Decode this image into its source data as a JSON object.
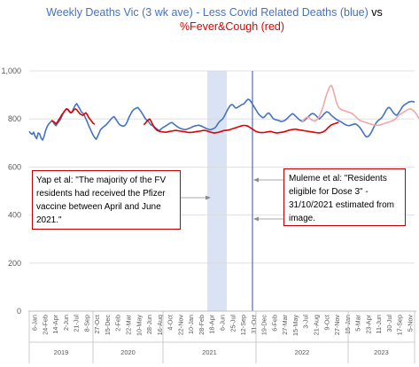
{
  "chart_data": {
    "type": "line",
    "title_line1": "Weekly Deaths Vic (3 wk ave)  - Less Covid Related Deaths (blue)",
    "title_vs": " vs",
    "title_line2": "%Fever&Cough (red)",
    "yticks": [
      "0",
      "200",
      "400",
      "600",
      "800",
      "1,000"
    ],
    "ylim": [
      0,
      1000
    ],
    "xlabels": [
      "6-Jan",
      "24-Feb",
      "14-Apr",
      "2-Jun",
      "21-Jul",
      "8-Sep",
      "27-Oct",
      "15-Dec",
      "2-Feb",
      "22-Mar",
      "10-May",
      "28-Jun",
      "16-Aug",
      "4-Oct",
      "22-Nov",
      "10-Jan",
      "28-Feb",
      "18-Apr",
      "6-Jun",
      "25-Jul",
      "12-Sep",
      "31-Oct",
      "19-Dec",
      "6-Feb",
      "27-Mar",
      "15-May",
      "3-Jul",
      "21-Aug",
      "9-Oct",
      "27-Nov",
      "15-Jan",
      "5-Mar",
      "23-Apr",
      "11-Jun",
      "30-Jul",
      "17-Sep",
      "5-Nov"
    ],
    "years": [
      "2019",
      "2020",
      "2021",
      "2022",
      "2023"
    ],
    "series": [
      {
        "color": "#4472c4",
        "values": [
          748,
          740,
          736,
          745,
          728,
          718,
          742,
          738,
          720,
          712,
          728,
          752,
          768,
          778,
          785,
          792,
          788,
          778,
          772,
          782,
          790,
          798,
          812,
          826,
          835,
          842,
          838,
          830,
          825,
          832,
          846,
          858,
          864,
          852,
          842,
          830,
          825,
          815,
          802,
          788,
          772,
          758,
          745,
          732,
          722,
          715,
          728,
          742,
          756,
          762,
          768,
          772,
          778,
          785,
          792,
          800,
          806,
          810,
          802,
          792,
          782,
          775,
          772,
          770,
          772,
          778,
          790,
          806,
          818,
          830,
          838,
          842,
          845,
          848,
          840,
          832,
          822,
          812,
          802,
          795,
          790,
          782,
          775,
          772,
          768,
          762,
          758,
          752,
          755,
          760,
          765,
          768,
          772,
          776,
          780,
          784,
          785,
          780,
          775,
          770,
          766,
          762,
          760,
          758,
          756,
          755,
          758,
          760,
          762,
          765,
          768,
          770,
          772,
          773,
          774,
          772,
          770,
          766,
          764,
          760,
          758,
          756,
          755,
          758,
          760,
          764,
          772,
          782,
          790,
          795,
          800,
          810,
          822,
          835,
          846,
          855,
          860,
          858,
          850,
          845,
          848,
          852,
          856,
          860,
          862,
          868,
          876,
          882,
          880,
          872,
          862,
          852,
          842,
          832,
          822,
          815,
          810,
          805,
          808,
          815,
          822,
          825,
          818,
          810,
          802,
          798,
          796,
          795,
          793,
          790,
          790,
          792,
          795,
          800,
          806,
          812,
          818,
          822,
          818,
          812,
          806,
          800,
          795,
          792,
          790,
          794,
          800,
          806,
          812,
          818,
          822,
          822,
          818,
          812,
          806,
          800,
          806,
          812,
          820,
          826,
          830,
          828,
          822,
          816,
          810,
          805,
          800,
          796,
          793,
          790,
          786,
          782,
          778,
          775,
          773,
          772,
          774,
          776,
          778,
          780,
          777,
          772,
          766,
          758,
          748,
          738,
          728,
          725,
          728,
          735,
          745,
          758,
          770,
          782,
          790,
          796,
          800,
          806,
          815,
          826,
          838,
          846,
          848,
          842,
          832,
          824,
          818,
          815,
          822,
          832,
          842,
          852,
          858,
          862,
          866,
          870,
          872,
          873,
          872,
          870
        ]
      },
      {
        "color": "#e00000",
        "values": [
          null,
          null,
          null,
          null,
          null,
          null,
          null,
          null,
          null,
          null,
          null,
          null,
          null,
          null,
          null,
          795,
          790,
          785,
          780,
          788,
          798,
          808,
          818,
          826,
          835,
          842,
          840,
          832,
          826,
          830,
          838,
          842,
          838,
          830,
          822,
          818,
          815,
          820,
          826,
          818,
          806,
          798,
          790,
          782,
          778,
          null,
          null,
          null,
          null,
          null,
          null,
          null,
          null,
          null,
          null,
          null,
          null,
          null,
          null,
          null,
          null,
          null,
          null,
          null,
          null,
          null,
          null,
          null,
          null,
          null,
          null,
          null,
          null,
          null,
          null,
          null,
          null,
          776,
          782,
          790,
          796,
          800,
          790,
          776,
          765,
          758,
          752,
          750,
          748,
          747,
          746,
          745,
          745,
          746,
          748,
          749,
          750,
          751,
          752,
          752,
          751,
          750,
          749,
          748,
          747,
          746,
          745,
          744,
          744,
          744,
          745,
          746,
          747,
          748,
          749,
          750,
          751,
          752,
          752,
          751,
          749,
          747,
          745,
          743,
          742,
          742,
          743,
          744,
          746,
          748,
          750,
          752,
          752,
          753,
          754,
          756,
          758,
          760,
          762,
          764,
          766,
          768,
          770,
          772,
          773,
          773,
          772,
          770,
          766,
          762,
          758,
          754,
          750,
          747,
          745,
          744,
          743,
          743,
          744,
          745,
          746,
          747,
          748,
          747,
          745,
          743,
          742,
          742,
          743,
          744,
          745,
          746,
          748,
          750,
          752,
          754,
          755,
          756,
          757,
          758,
          756,
          755,
          754,
          753,
          752,
          751,
          750,
          749,
          748,
          747,
          746,
          745,
          744,
          743,
          742,
          742,
          743,
          745,
          748,
          752,
          758,
          765,
          770,
          775,
          778,
          780,
          782,
          784,
          786,
          null,
          null,
          null,
          null,
          null,
          null,
          null,
          null,
          null,
          null,
          null,
          null,
          null,
          null,
          null,
          null,
          null,
          null,
          null,
          null,
          null,
          null,
          null,
          null,
          null,
          null,
          null,
          null,
          null,
          null,
          null,
          null,
          null,
          null,
          null,
          null,
          null,
          null,
          null,
          null,
          null,
          null,
          null,
          null,
          null,
          null,
          null,
          null,
          null,
          null,
          null,
          null,
          null,
          null,
          null,
          null,
          null,
          null,
          null,
          null,
          null,
          null,
          null,
          null,
          null,
          null,
          null,
          null,
          null,
          null,
          null,
          null,
          null,
          null,
          null,
          null,
          null,
          null,
          null,
          null,
          null,
          null,
          null
        ]
      },
      {
        "color": "#f4a6a6",
        "values": [
          null,
          null,
          null,
          null,
          null,
          null,
          null,
          null,
          null,
          null,
          null,
          null,
          null,
          null,
          null,
          null,
          null,
          null,
          null,
          null,
          null,
          null,
          null,
          null,
          null,
          null,
          null,
          null,
          null,
          null,
          null,
          null,
          null,
          null,
          null,
          null,
          null,
          null,
          null,
          null,
          null,
          null,
          null,
          null,
          null,
          null,
          null,
          null,
          null,
          null,
          null,
          null,
          null,
          null,
          null,
          null,
          null,
          null,
          null,
          null,
          null,
          null,
          null,
          null,
          null,
          null,
          null,
          null,
          null,
          null,
          null,
          null,
          null,
          null,
          null,
          null,
          null,
          null,
          null,
          null,
          null,
          null,
          null,
          null,
          null,
          null,
          null,
          null,
          null,
          null,
          null,
          null,
          null,
          null,
          null,
          null,
          null,
          null,
          null,
          null,
          null,
          null,
          null,
          null,
          null,
          null,
          null,
          null,
          null,
          null,
          null,
          null,
          null,
          null,
          null,
          null,
          null,
          null,
          null,
          null,
          null,
          null,
          null,
          null,
          null,
          null,
          null,
          null,
          null,
          null,
          null,
          null,
          null,
          null,
          null,
          null,
          null,
          null,
          null,
          null,
          null,
          null,
          null,
          null,
          null,
          null,
          null,
          null,
          null,
          null,
          null,
          null,
          null,
          null,
          null,
          null,
          null,
          null,
          null,
          null,
          null,
          null,
          null,
          null,
          null,
          null,
          null,
          null,
          null,
          null,
          null,
          null,
          null,
          null,
          null,
          null,
          null,
          null,
          null,
          null,
          null,
          null,
          null,
          786,
          792,
          800,
          805,
          808,
          806,
          800,
          796,
          793,
          792,
          795,
          802,
          812,
          826,
          842,
          862,
          885,
          905,
          920,
          935,
          940,
          928,
          905,
          880,
          860,
          848,
          842,
          838,
          836,
          834,
          832,
          830,
          828,
          826,
          822,
          818,
          812,
          806,
          800,
          795,
          792,
          790,
          788,
          786,
          784,
          782,
          780,
          778,
          776,
          775,
          774,
          773,
          774,
          776,
          778,
          780,
          782,
          784,
          786,
          788,
          790,
          792,
          795,
          800,
          806,
          812,
          818,
          822,
          826,
          830,
          834,
          838,
          840,
          842,
          840,
          836,
          830,
          822,
          812,
          802,
          795,
          790,
          788,
          788,
          790,
          792,
          796,
          800,
          806,
          812,
          818,
          822,
          822,
          818,
          812,
          806,
          800,
          798,
          796,
          798,
          800,
          805,
          810,
          814,
          815,
          812,
          806,
          800,
          795,
          792,
          790,
          788,
          786,
          784,
          782,
          780,
          778,
          776
        ]
      }
    ],
    "annotations": [
      "Yap et al: \"The majority of the FV residents had received the Pfizer vaccine between April and June 2021.\"",
      "Muleme et al: \"Residents eligible for Dose 3\" - 31/10/2021 estimated from image."
    ]
  }
}
